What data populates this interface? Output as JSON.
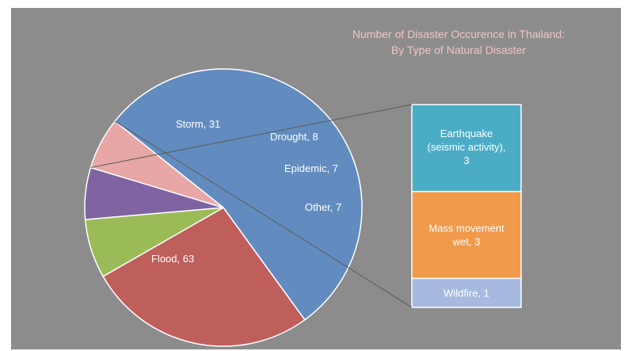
{
  "chart_data": {
    "type": "pie",
    "title": [
      "Number of Disaster Occurence in Thailand:",
      "By Type of Natural Disaster"
    ],
    "slices": [
      {
        "label": "Flood",
        "value": 63,
        "color": "#628cbf"
      },
      {
        "label": "Storm",
        "value": 31,
        "color": "#bf5f5c"
      },
      {
        "label": "Drought",
        "value": 8,
        "color": "#9bbb59"
      },
      {
        "label": "Epidemic",
        "value": 7,
        "color": "#8064a2"
      },
      {
        "label": "Other",
        "value": 7,
        "color": "#e6a7a6"
      }
    ],
    "breakout": {
      "of": "Other",
      "items": [
        {
          "label": "Earthquake (seismic activity)",
          "value": 3,
          "color": "#4bacc6"
        },
        {
          "label": "Mass movement wet",
          "value": 3,
          "color": "#f09a4c"
        },
        {
          "label": "Wildfire",
          "value": 1,
          "color": "#a6b9df"
        }
      ]
    },
    "labels": {
      "Flood": "Flood, 63",
      "Storm": "Storm, 31",
      "Drought": "Drought, 8",
      "Epidemic": "Epidemic, 7",
      "Other": "Other, 7",
      "Earthquake": [
        "Earthquake",
        "(seismic activity),",
        "3"
      ],
      "Mass": [
        "Mass movement",
        "wet, 3"
      ],
      "Wildfire": "Wildfire, 1"
    }
  }
}
